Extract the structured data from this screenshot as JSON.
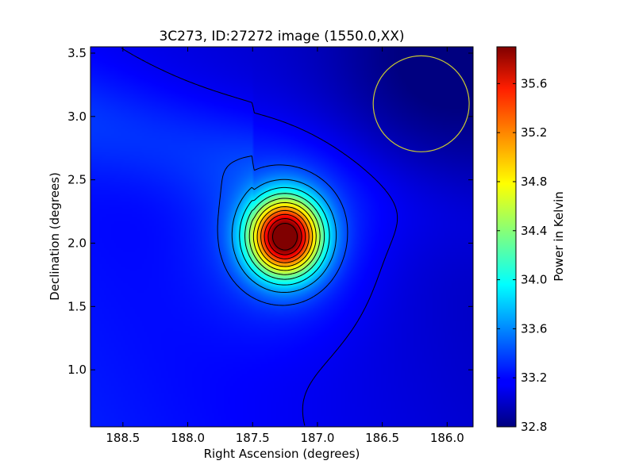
{
  "chart_data": {
    "type": "heatmap",
    "title": "3C273, ID:27272 image (1550.0,XX)",
    "xlabel": "Right Ascension (degrees)",
    "ylabel": "Declination (degrees)",
    "colorbar_label": "Power in Kelvin",
    "xlim": [
      188.75,
      185.8
    ],
    "ylim": [
      0.55,
      3.55
    ],
    "x_ticks": [
      188.5,
      188.0,
      187.5,
      187.0,
      186.5,
      186.0
    ],
    "x_tick_labels": [
      "188.5",
      "188.0",
      "187.5",
      "187.0",
      "186.5",
      "186.0"
    ],
    "y_ticks": [
      1.0,
      1.5,
      2.0,
      2.5,
      3.0,
      3.5
    ],
    "y_tick_labels": [
      "1.0",
      "1.5",
      "2.0",
      "2.5",
      "3.0",
      "3.5"
    ],
    "colorbar_range": [
      32.8,
      35.9
    ],
    "colorbar_ticks": [
      32.8,
      33.2,
      33.6,
      34.0,
      34.4,
      34.8,
      35.2,
      35.6
    ],
    "colorbar_tick_labels": [
      "32.8",
      "33.2",
      "33.6",
      "34.0",
      "34.4",
      "34.8",
      "35.2",
      "35.6"
    ],
    "colormap": "jet",
    "peak": {
      "ra": 187.25,
      "dec": 2.05,
      "value": 35.9
    },
    "beam_circle": {
      "ra": 186.2,
      "dec": 3.1,
      "radius_deg": 0.37,
      "color": "#c8c832"
    },
    "contour_color": "#000000",
    "grid": false
  }
}
